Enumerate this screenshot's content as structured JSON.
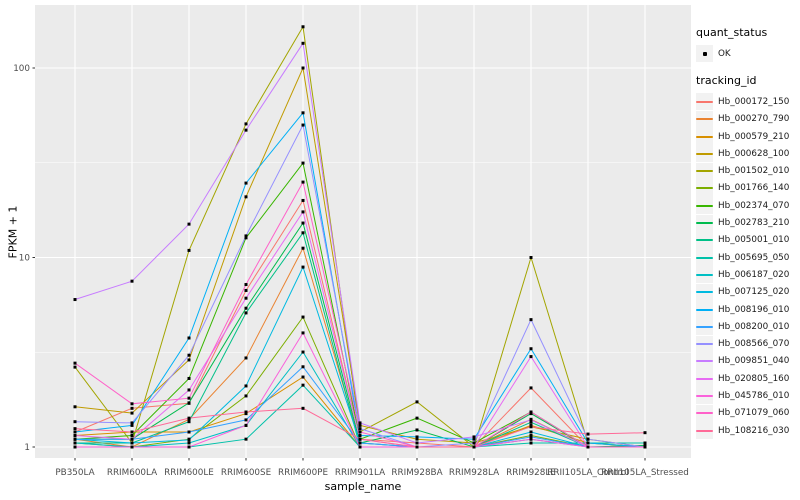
{
  "figure": {
    "panel_bg": "#EBEBEB",
    "grid_color": "#FFFFFF",
    "axis_text_color": "#4D4D4D",
    "axis_title_color": "#000000",
    "point_color": "#000000",
    "legend_key_bg": "#F2F2F2"
  },
  "chart_data": {
    "type": "line",
    "title": "",
    "xlabel": "sample_name",
    "ylabel": "FPKM + 1",
    "y_scale": "log10",
    "y_ticks": [
      1,
      10,
      100
    ],
    "y_minor_ticks": [
      3.162,
      31.62
    ],
    "ylim": [
      0.87,
      215
    ],
    "grid": "on",
    "marker": "point",
    "categories": [
      "PB350LA",
      "RRIM600LA",
      "RRIM600LE",
      "RRIM600SE",
      "RRIM600PE",
      "RRIM901LA",
      "RRIM928BA",
      "RRIM928LA",
      "RRIM928LE",
      "RRII105LA_Control",
      "RRII105LA_Stressed"
    ],
    "legend": {
      "position": "right",
      "quant_status": {
        "title": "quant_status",
        "items": [
          {
            "label": "OK",
            "marker": "black-point"
          }
        ]
      },
      "tracking_id": {
        "title": "tracking_id"
      }
    },
    "series": [
      {
        "name": "Hb_000172_150",
        "color": "#F8766D",
        "values": [
          1.2,
          1.6,
          1.7,
          6.7,
          20,
          1.1,
          1.05,
          1.0,
          2.05,
          1.0,
          1.0
        ]
      },
      {
        "name": "Hb_000270_790",
        "color": "#EA8331",
        "values": [
          1.1,
          1.0,
          1.4,
          2.95,
          11.2,
          1.05,
          1.0,
          1.0,
          1.4,
          1.0,
          1.0
        ]
      },
      {
        "name": "Hb_000579_210",
        "color": "#D89000",
        "values": [
          1.15,
          1.2,
          1.2,
          1.5,
          2.34,
          1.0,
          1.0,
          1.0,
          1.3,
          1.05,
          1.0
        ]
      },
      {
        "name": "Hb_000628_100",
        "color": "#C09B00",
        "values": [
          1.63,
          1.51,
          2.88,
          20.9,
          100,
          1.3,
          1.1,
          1.05,
          1.28,
          1.1,
          1.0
        ]
      },
      {
        "name": "Hb_001502_010",
        "color": "#A3A500",
        "values": [
          2.64,
          1.05,
          10.9,
          50.7,
          165,
          1.2,
          1.73,
          1.0,
          10.0,
          1.05,
          1.0
        ]
      },
      {
        "name": "Hb_001766_140",
        "color": "#7CAE00",
        "values": [
          1.05,
          1.0,
          1.1,
          1.86,
          4.85,
          1.0,
          1.0,
          1.0,
          1.15,
          1.0,
          1.0
        ]
      },
      {
        "name": "Hb_002374_070",
        "color": "#39B600",
        "values": [
          1.1,
          1.15,
          2.3,
          12.7,
          31.5,
          1.1,
          1.42,
          1.05,
          1.53,
          1.0,
          1.0
        ]
      },
      {
        "name": "Hb_002783_210",
        "color": "#00BB4E",
        "values": [
          1.1,
          1.1,
          1.71,
          5.4,
          15.2,
          1.05,
          1.23,
          1.0,
          1.5,
          1.0,
          1.02
        ]
      },
      {
        "name": "Hb_005001_010",
        "color": "#00C087",
        "values": [
          1.05,
          1.05,
          1.36,
          5.1,
          13.5,
          1.0,
          1.0,
          1.0,
          1.35,
          1.0,
          1.0
        ]
      },
      {
        "name": "Hb_005695_050",
        "color": "#00C1A9",
        "values": [
          1.0,
          1.0,
          1.0,
          1.1,
          2.12,
          1.0,
          1.0,
          1.0,
          1.05,
          1.05,
          1.05
        ]
      },
      {
        "name": "Hb_006187_020",
        "color": "#00BFC4",
        "values": [
          1.05,
          1.0,
          1.05,
          1.3,
          3.17,
          1.0,
          1.0,
          1.0,
          1.1,
          1.0,
          1.0
        ]
      },
      {
        "name": "Hb_007125_020",
        "color": "#00BAE0",
        "values": [
          1.1,
          1.05,
          1.09,
          2.1,
          8.9,
          1.05,
          1.0,
          1.0,
          1.2,
          1.0,
          1.0
        ]
      },
      {
        "name": "Hb_008196_010",
        "color": "#00B0F6",
        "values": [
          1.2,
          1.3,
          3.76,
          24.7,
          58,
          1.15,
          1.13,
          1.1,
          3.3,
          1.05,
          1.0
        ]
      },
      {
        "name": "Hb_008200_010",
        "color": "#35A2FF",
        "values": [
          1.1,
          1.1,
          1.2,
          1.39,
          2.65,
          1.05,
          1.0,
          1.0,
          1.13,
          1.0,
          1.0
        ]
      },
      {
        "name": "Hb_008566_070",
        "color": "#9590FF",
        "values": [
          1.36,
          1.34,
          3.05,
          13.0,
          50,
          1.25,
          1.0,
          1.05,
          4.7,
          1.1,
          1.0
        ]
      },
      {
        "name": "Hb_009851_040",
        "color": "#C77CFF",
        "values": [
          6.0,
          7.5,
          15.0,
          47,
          135,
          1.34,
          1.05,
          1.13,
          1.39,
          1.0,
          1.0
        ]
      },
      {
        "name": "Hb_020805_160",
        "color": "#E76BF3",
        "values": [
          1.15,
          1.1,
          2.0,
          6.1,
          17.4,
          1.1,
          1.0,
          1.0,
          3.0,
          1.0,
          1.0
        ]
      },
      {
        "name": "Hb_045786_010",
        "color": "#FA62DB",
        "values": [
          1.0,
          1.0,
          1.0,
          1.3,
          4.0,
          1.0,
          1.0,
          1.0,
          1.1,
          1.0,
          1.0
        ]
      },
      {
        "name": "Hb_071079_060",
        "color": "#FF61C9",
        "values": [
          2.77,
          1.69,
          1.81,
          7.2,
          25,
          1.2,
          1.0,
          1.0,
          1.53,
          1.0,
          1.0
        ]
      },
      {
        "name": "Hb_108216_030",
        "color": "#FF6A98",
        "values": [
          1.25,
          1.2,
          1.42,
          1.53,
          1.6,
          1.1,
          1.0,
          1.0,
          1.28,
          1.17,
          1.19
        ]
      }
    ]
  }
}
